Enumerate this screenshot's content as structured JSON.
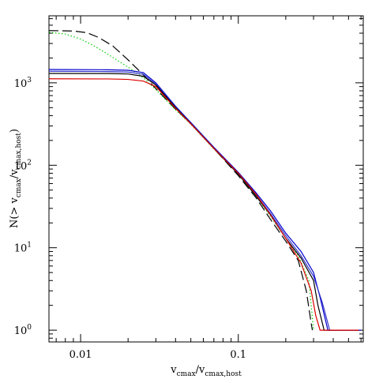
{
  "chart_data": {
    "type": "line",
    "title": "",
    "xlabel": {
      "main": "v",
      "sub1": "cmax",
      "mid": "/v",
      "sub2": "cmax,host"
    },
    "ylabel": {
      "main": "N(> v",
      "sub1": "cmax",
      "mid": "/v",
      "sub2": "cmax,host",
      "end": ")"
    },
    "x_scale": "log",
    "y_scale": "log",
    "xlim": [
      0.0063,
      0.62
    ],
    "ylim": [
      0.72,
      6500
    ],
    "x_ticks": [
      {
        "value": 0.01,
        "label": "0.01"
      },
      {
        "value": 0.1,
        "label": "0.1"
      }
    ],
    "y_ticks": [
      {
        "value": 1,
        "base": "10",
        "exp": "0"
      },
      {
        "value": 10,
        "base": "10",
        "exp": "1"
      },
      {
        "value": 100,
        "base": "10",
        "exp": "2"
      },
      {
        "value": 1000,
        "base": "10",
        "exp": "3"
      }
    ],
    "grid": false,
    "legend": "none",
    "series": [
      {
        "color": "#000000",
        "dash": "long-dash",
        "x": [
          0.0063,
          0.009,
          0.011,
          0.013,
          0.016,
          0.02,
          0.025,
          0.03,
          0.04,
          0.05,
          0.07,
          0.1,
          0.13,
          0.16,
          0.2,
          0.24,
          0.27,
          0.29,
          0.295
        ],
        "y": [
          4300,
          4250,
          4050,
          3550,
          2800,
          1900,
          1250,
          850,
          480,
          320,
          160,
          75,
          40,
          22,
          12,
          7,
          3,
          1.2,
          1
        ]
      },
      {
        "color": "#00cc00",
        "dash": "dotted",
        "x": [
          0.0063,
          0.008,
          0.01,
          0.012,
          0.015,
          0.02,
          0.025,
          0.03,
          0.04,
          0.05,
          0.07,
          0.1,
          0.13,
          0.16,
          0.2,
          0.24,
          0.28,
          0.3
        ],
        "y": [
          4100,
          3900,
          3400,
          2850,
          2200,
          1550,
          1150,
          830,
          470,
          315,
          158,
          78,
          42,
          24,
          13,
          8,
          4,
          1
        ]
      },
      {
        "color": "#0000cc",
        "dash": "solid",
        "x": [
          0.0063,
          0.015,
          0.02,
          0.025,
          0.03,
          0.04,
          0.05,
          0.07,
          0.1,
          0.13,
          0.16,
          0.2,
          0.25,
          0.3,
          0.33,
          0.37,
          0.6
        ],
        "y": [
          1450,
          1440,
          1420,
          1330,
          1000,
          520,
          330,
          165,
          82,
          46,
          28,
          15,
          9,
          5,
          2.5,
          1,
          1
        ]
      },
      {
        "color": "#3333cc",
        "dash": "solid",
        "x": [
          0.0063,
          0.015,
          0.02,
          0.025,
          0.03,
          0.04,
          0.05,
          0.07,
          0.1,
          0.13,
          0.16,
          0.2,
          0.25,
          0.3,
          0.34,
          0.38,
          0.52
        ],
        "y": [
          1380,
          1370,
          1350,
          1270,
          960,
          510,
          325,
          162,
          80,
          44,
          26,
          14,
          8,
          4.5,
          2.2,
          1,
          1
        ]
      },
      {
        "color": "#000000",
        "dash": "solid",
        "x": [
          0.0063,
          0.015,
          0.02,
          0.025,
          0.03,
          0.04,
          0.05,
          0.07,
          0.1,
          0.13,
          0.16,
          0.2,
          0.25,
          0.3,
          0.32,
          0.35,
          0.58
        ],
        "y": [
          1300,
          1295,
          1280,
          1200,
          940,
          500,
          320,
          160,
          78,
          42,
          25,
          13,
          7.5,
          4,
          2,
          1,
          1
        ]
      },
      {
        "color": "#dd0000",
        "dash": "solid",
        "x": [
          0.0063,
          0.015,
          0.02,
          0.025,
          0.03,
          0.04,
          0.05,
          0.07,
          0.1,
          0.13,
          0.16,
          0.2,
          0.25,
          0.29,
          0.31,
          0.33,
          0.58
        ],
        "y": [
          1120,
          1115,
          1100,
          1050,
          900,
          490,
          318,
          160,
          80,
          44,
          25,
          13,
          6.5,
          3,
          1.5,
          1,
          1
        ]
      }
    ]
  }
}
